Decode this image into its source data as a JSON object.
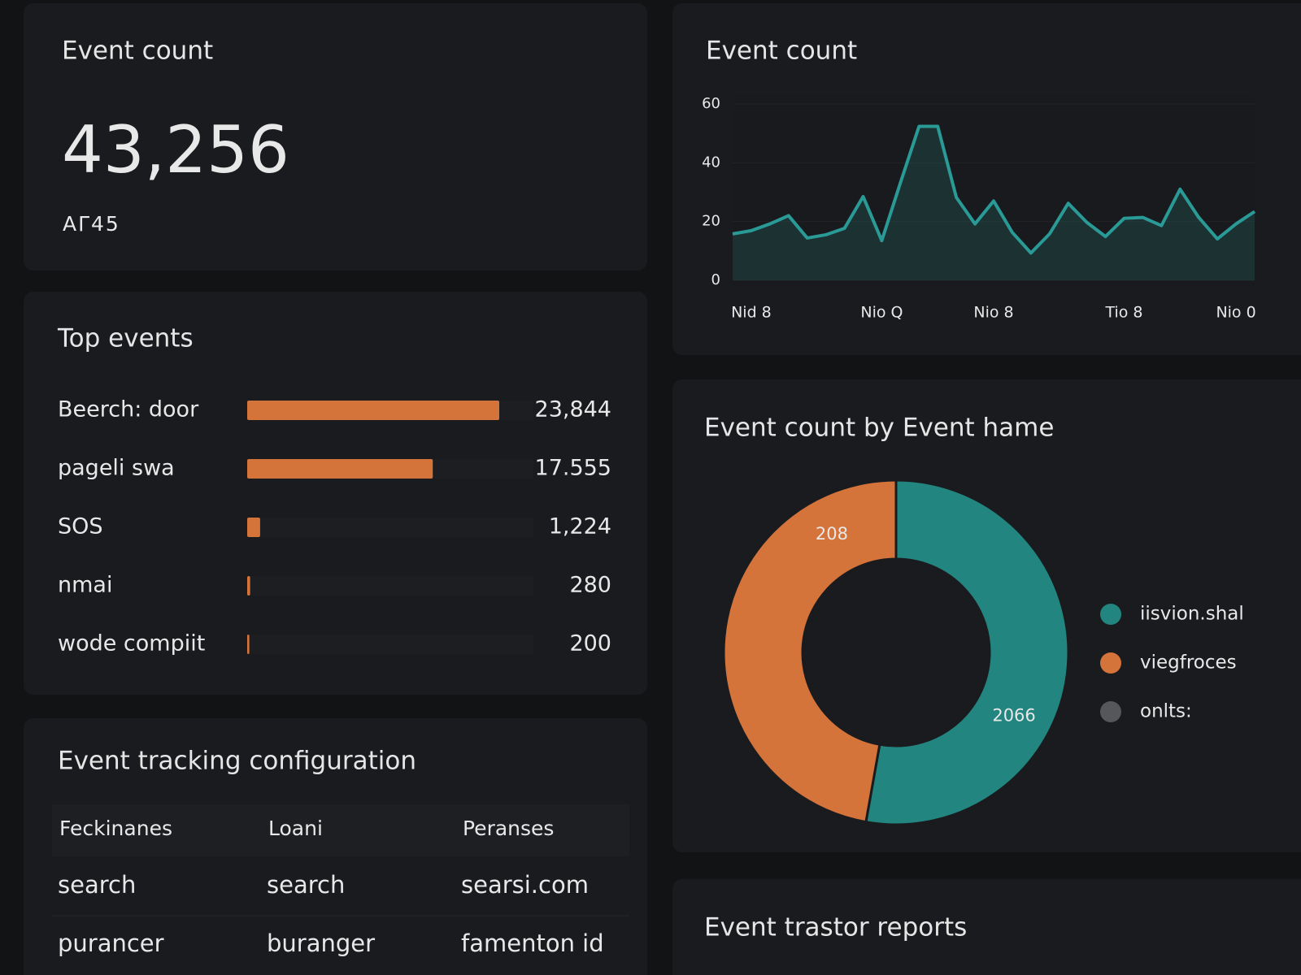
{
  "kpi": {
    "title": "Event count",
    "value": "43,256",
    "subtitle": "AΓ45"
  },
  "chart_data": [
    {
      "type": "hbar",
      "title": "Top events",
      "categories": [
        "Beerch: door",
        "pageli swa",
        "SOS",
        "nmai",
        "wode compiit"
      ],
      "values": [
        23844,
        17555,
        1224,
        280,
        200
      ],
      "value_labels": [
        "23,844",
        "17.555",
        "1,224",
        "280",
        "200"
      ],
      "color": "#d4733a"
    },
    {
      "type": "line",
      "title": "Event count",
      "categories": [
        null,
        "Nid 8",
        null,
        null,
        null,
        null,
        null,
        null,
        "Nio Q",
        null,
        null,
        null,
        null,
        null,
        "Nio 8",
        null,
        null,
        null,
        null,
        null,
        null,
        "Tio 8",
        null,
        null,
        null,
        null,
        null,
        "Nio 0",
        null
      ],
      "values": [
        15.8,
        16.9,
        19.2,
        22,
        14.4,
        15.5,
        17.7,
        28.5,
        13.5,
        33.2,
        52.4,
        52.4,
        28.2,
        19.2,
        27,
        16.3,
        9.3,
        15.8,
        26.2,
        19.7,
        14.9,
        21.1,
        21.4,
        18.6,
        31,
        21.4,
        14.1,
        19.2,
        23.4
      ],
      "ylim": [
        0,
        60
      ],
      "yticks": [
        0,
        20,
        40,
        60
      ],
      "grid": true,
      "area": true,
      "color": "#2a9a96"
    },
    {
      "type": "donut",
      "title": "Event count by Event hame",
      "categories": [
        "iisvion.shal",
        "viegfroces",
        "onlts:"
      ],
      "values": [
        52.8,
        47.2,
        0
      ],
      "colors": [
        "#22857f",
        "#d4733a",
        "#55575a"
      ],
      "annotations": [
        "2066",
        "208"
      ]
    }
  ],
  "table": {
    "title": "Event tracking configuration",
    "header": [
      "Feckinanes",
      "Loani",
      "Peranses"
    ],
    "rows": [
      [
        "search",
        "search",
        "searsi.com"
      ],
      [
        "purancer",
        "buranger",
        "famenton id"
      ]
    ]
  },
  "reports": {
    "title": "Event trastor reports"
  }
}
